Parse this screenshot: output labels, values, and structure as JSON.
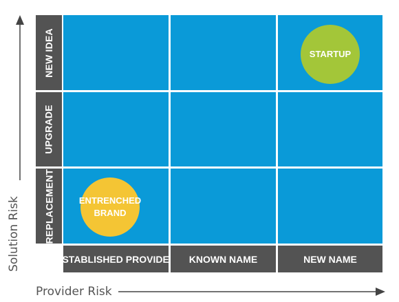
{
  "axes": {
    "y_label": "Solution Risk",
    "x_label": "Provider Risk"
  },
  "rows": [
    {
      "label": "NEW IDEA"
    },
    {
      "label": "UPGRADE"
    },
    {
      "label": "REPLACEMENT"
    }
  ],
  "columns": [
    {
      "label": "ESTABLISHED PROVIDER"
    },
    {
      "label": "KNOWN NAME"
    },
    {
      "label": "NEW NAME"
    }
  ],
  "bubbles": [
    {
      "line1": "STARTUP",
      "line2": "",
      "row": "NEW IDEA",
      "column": "NEW NAME",
      "color": "#a3c639"
    },
    {
      "line1": "ENTRENCHED",
      "line2": "BRAND",
      "row": "REPLACEMENT",
      "column": "ESTABLISHED PROVIDER",
      "color": "#f4c534"
    }
  ],
  "colors": {
    "cell": "#0a9ad8",
    "header": "#535353",
    "text_light": "#ffffff",
    "axis_text": "#555555"
  }
}
